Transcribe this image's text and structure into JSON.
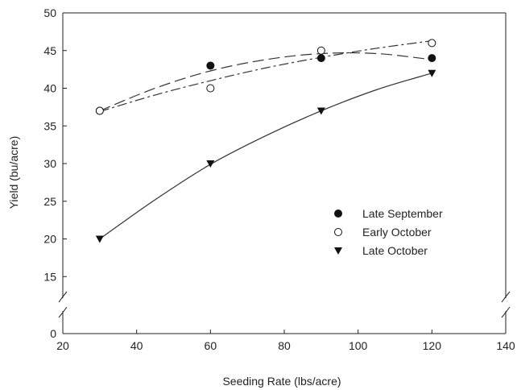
{
  "chart_data": {
    "type": "scatter",
    "title": "",
    "xlabel": "Seeding Rate (lbs/acre)",
    "ylabel": "Yield (bu/acre)",
    "xlim": [
      20,
      140
    ],
    "ylim_upper_segment": [
      12,
      50
    ],
    "ylim_lower_segment": [
      0,
      3
    ],
    "axis_break": true,
    "x_ticks": [
      20,
      40,
      60,
      80,
      100,
      120,
      140
    ],
    "y_ticks": [
      0,
      15,
      20,
      25,
      30,
      35,
      40,
      45,
      50
    ],
    "grid": false,
    "legend_position": "right-center",
    "series": [
      {
        "name": "Late September",
        "marker": "filled-circle",
        "line_style": "long-dash",
        "x": [
          30,
          60,
          90,
          120
        ],
        "y": [
          37,
          43,
          44,
          44
        ],
        "fit_curve": [
          [
            30,
            37
          ],
          [
            45,
            40
          ],
          [
            60,
            42.3
          ],
          [
            75,
            43.8
          ],
          [
            90,
            44.6
          ],
          [
            105,
            44.6
          ],
          [
            120,
            43.8
          ]
        ]
      },
      {
        "name": "Early October",
        "marker": "open-circle",
        "line_style": "dash-dot",
        "x": [
          30,
          60,
          90,
          120
        ],
        "y": [
          37,
          40,
          45,
          46
        ],
        "fit_curve": [
          [
            30,
            36.9
          ],
          [
            45,
            39.1
          ],
          [
            60,
            41.0
          ],
          [
            75,
            42.7
          ],
          [
            90,
            44.1
          ],
          [
            105,
            45.3
          ],
          [
            120,
            46.3
          ]
        ]
      },
      {
        "name": "Late October",
        "marker": "filled-triangle-down",
        "line_style": "solid",
        "x": [
          30,
          60,
          90,
          120
        ],
        "y": [
          20,
          30,
          37,
          42
        ],
        "fit_curve": [
          [
            30,
            20
          ],
          [
            45,
            25.2
          ],
          [
            60,
            29.9
          ],
          [
            75,
            33.7
          ],
          [
            90,
            37.0
          ],
          [
            105,
            39.8
          ],
          [
            120,
            42.0
          ]
        ]
      }
    ]
  }
}
